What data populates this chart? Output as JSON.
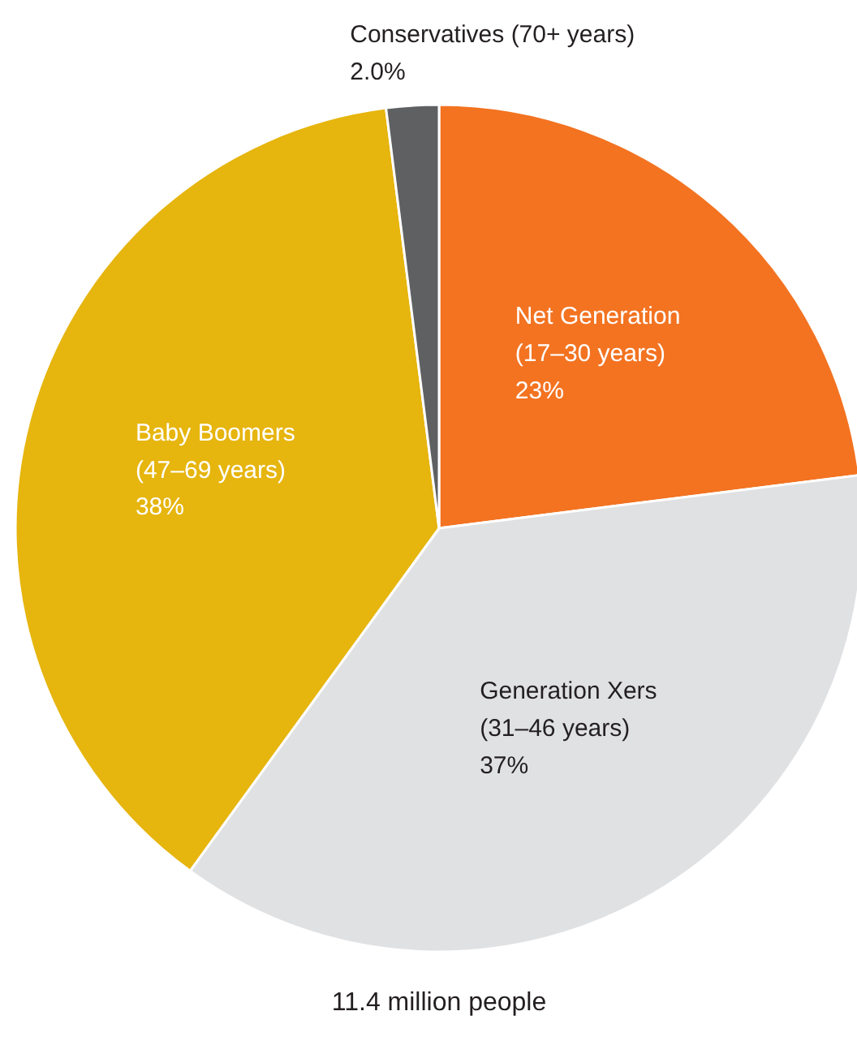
{
  "chart_data": {
    "type": "pie",
    "categories": [
      "Net Generation\n(17–30 years)",
      "Generation Xers\n(31–46 years)",
      "Baby Boomers\n(47–69 years)",
      "Conservatives (70+ years)"
    ],
    "values": [
      23,
      37,
      38,
      2.0
    ],
    "colors": [
      "#f37321",
      "#e0e1e3",
      "#e6b50e",
      "#5f6062"
    ],
    "value_labels": [
      "23%",
      "37%",
      "38%",
      "2.0%"
    ],
    "annotations": [
      "11.4 million people"
    ]
  }
}
